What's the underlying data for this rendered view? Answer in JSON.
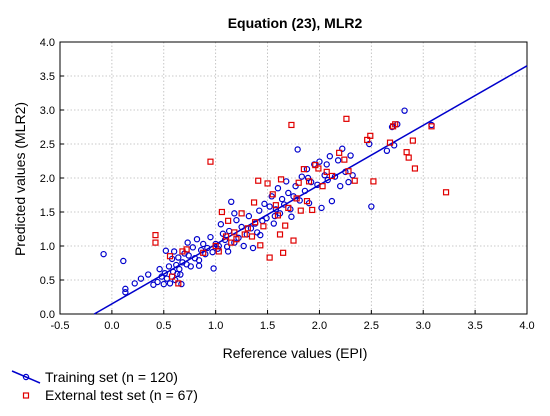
{
  "chart_data": {
    "type": "scatter",
    "title": "Equation (23), MLR2",
    "xlabel": "Reference values (EPI)",
    "ylabel": "Predicted values (MLR2)",
    "xlim": [
      -0.5,
      4.0
    ],
    "ylim": [
      0.0,
      4.0
    ],
    "x_ticks": [
      "-0.5",
      "0.0",
      "0.5",
      "1.0",
      "1.5",
      "2.0",
      "2.5",
      "3.0",
      "3.5",
      "4.0"
    ],
    "y_ticks": [
      "0.0",
      "0.5",
      "1.0",
      "1.5",
      "2.0",
      "2.5",
      "3.0",
      "3.5",
      "4.0"
    ],
    "grid": true,
    "legend_position": "bottom-left",
    "colors": {
      "training": "#0000cc",
      "test": "#e00000",
      "fit_line": "#0000cc"
    },
    "fit_line": {
      "x": [
        -0.17,
        4.0
      ],
      "y": [
        0.0,
        3.65
      ]
    },
    "series": [
      {
        "name": "Training set (n = 120)",
        "marker": "circle",
        "points": [
          [
            -0.08,
            0.88
          ],
          [
            0.11,
            0.78
          ],
          [
            0.13,
            0.37
          ],
          [
            0.13,
            0.32
          ],
          [
            0.22,
            0.45
          ],
          [
            0.28,
            0.52
          ],
          [
            0.35,
            0.58
          ],
          [
            0.4,
            0.43
          ],
          [
            0.44,
            0.47
          ],
          [
            0.46,
            0.66
          ],
          [
            0.48,
            0.55
          ],
          [
            0.5,
            0.44
          ],
          [
            0.51,
            0.6
          ],
          [
            0.53,
            0.52
          ],
          [
            0.55,
            0.7
          ],
          [
            0.56,
            0.45
          ],
          [
            0.58,
            0.81
          ],
          [
            0.59,
            0.62
          ],
          [
            0.6,
            0.92
          ],
          [
            0.61,
            0.5
          ],
          [
            0.62,
            0.72
          ],
          [
            0.63,
            0.59
          ],
          [
            0.64,
            0.83
          ],
          [
            0.65,
            0.66
          ],
          [
            0.66,
            0.58
          ],
          [
            0.68,
            0.76
          ],
          [
            0.7,
            0.89
          ],
          [
            0.72,
            0.73
          ],
          [
            0.74,
            0.86
          ],
          [
            0.76,
            0.7
          ],
          [
            0.78,
            0.98
          ],
          [
            0.8,
            0.82
          ],
          [
            0.82,
            1.1
          ],
          [
            0.84,
            0.79
          ],
          [
            0.86,
            0.94
          ],
          [
            0.88,
            1.03
          ],
          [
            0.9,
            0.88
          ],
          [
            0.92,
            0.97
          ],
          [
            0.95,
            1.13
          ],
          [
            0.97,
            0.91
          ],
          [
            1.0,
            1.03
          ],
          [
            1.02,
            0.96
          ],
          [
            1.05,
            1.32
          ],
          [
            1.07,
            1.18
          ],
          [
            1.09,
            1.09
          ],
          [
            1.11,
            0.99
          ],
          [
            1.13,
            1.22
          ],
          [
            1.15,
            1.65
          ],
          [
            1.18,
            1.05
          ],
          [
            1.2,
            1.38
          ],
          [
            1.22,
            1.12
          ],
          [
            1.25,
            1.28
          ],
          [
            1.27,
            1.0
          ],
          [
            1.3,
            1.17
          ],
          [
            1.32,
            1.44
          ],
          [
            1.34,
            1.26
          ],
          [
            1.36,
            0.97
          ],
          [
            1.38,
            1.33
          ],
          [
            1.4,
            1.2
          ],
          [
            1.42,
            1.52
          ],
          [
            1.45,
            1.37
          ],
          [
            1.47,
            1.62
          ],
          [
            1.49,
            1.41
          ],
          [
            1.52,
            1.58
          ],
          [
            1.54,
            1.73
          ],
          [
            1.56,
            1.33
          ],
          [
            1.58,
            1.54
          ],
          [
            1.6,
            1.85
          ],
          [
            1.62,
            1.48
          ],
          [
            1.64,
            1.69
          ],
          [
            1.66,
            1.61
          ],
          [
            1.68,
            1.95
          ],
          [
            1.7,
            1.78
          ],
          [
            1.72,
            1.54
          ],
          [
            1.75,
            1.73
          ],
          [
            1.77,
            1.88
          ],
          [
            1.79,
            2.42
          ],
          [
            1.81,
            1.67
          ],
          [
            1.83,
            2.02
          ],
          [
            1.86,
            1.81
          ],
          [
            1.88,
            2.13
          ],
          [
            1.9,
            1.63
          ],
          [
            1.92,
            1.94
          ],
          [
            1.95,
            2.2
          ],
          [
            1.98,
            1.9
          ],
          [
            2.0,
            2.24
          ],
          [
            2.02,
            1.56
          ],
          [
            2.05,
            2.04
          ],
          [
            2.08,
            1.97
          ],
          [
            2.1,
            2.32
          ],
          [
            2.12,
            1.66
          ],
          [
            2.15,
            2.02
          ],
          [
            2.18,
            2.26
          ],
          [
            2.2,
            1.88
          ],
          [
            2.22,
            2.43
          ],
          [
            2.25,
            2.09
          ],
          [
            2.28,
            1.94
          ],
          [
            2.3,
            2.33
          ],
          [
            2.32,
            2.04
          ],
          [
            2.48,
            2.5
          ],
          [
            2.5,
            1.58
          ],
          [
            2.65,
            2.4
          ],
          [
            2.7,
            2.75
          ],
          [
            2.72,
            2.48
          ],
          [
            2.75,
            2.79
          ],
          [
            2.82,
            2.99
          ],
          [
            3.08,
            2.78
          ],
          [
            0.98,
            0.67
          ],
          [
            1.03,
            1.0
          ],
          [
            1.12,
            0.92
          ],
          [
            1.43,
            1.16
          ],
          [
            1.57,
            1.44
          ],
          [
            1.73,
            1.43
          ],
          [
            1.89,
            2.0
          ],
          [
            2.07,
            2.2
          ],
          [
            0.67,
            0.44
          ],
          [
            0.52,
            0.93
          ],
          [
            0.73,
            1.05
          ],
          [
            0.84,
            0.71
          ],
          [
            1.18,
            1.48
          ]
        ]
      },
      {
        "name": "External test set (n = 67)",
        "marker": "square",
        "points": [
          [
            0.42,
            1.16
          ],
          [
            0.42,
            1.05
          ],
          [
            0.56,
            0.85
          ],
          [
            0.58,
            0.55
          ],
          [
            0.64,
            0.45
          ],
          [
            0.68,
            0.92
          ],
          [
            0.72,
            0.95
          ],
          [
            0.88,
            0.9
          ],
          [
            0.95,
            2.24
          ],
          [
            1.0,
            1.0
          ],
          [
            1.03,
            0.92
          ],
          [
            1.06,
            1.5
          ],
          [
            1.1,
            1.14
          ],
          [
            1.12,
            1.37
          ],
          [
            1.15,
            1.05
          ],
          [
            1.18,
            1.2
          ],
          [
            1.2,
            1.1
          ],
          [
            1.25,
            1.48
          ],
          [
            1.28,
            1.17
          ],
          [
            1.31,
            1.26
          ],
          [
            1.35,
            1.14
          ],
          [
            1.38,
            1.35
          ],
          [
            1.41,
            1.96
          ],
          [
            1.43,
            1.01
          ],
          [
            1.46,
            1.29
          ],
          [
            1.5,
            1.92
          ],
          [
            1.52,
            0.83
          ],
          [
            1.55,
            1.76
          ],
          [
            1.58,
            1.6
          ],
          [
            1.6,
            1.45
          ],
          [
            1.63,
            1.98
          ],
          [
            1.65,
            0.9
          ],
          [
            1.67,
            1.3
          ],
          [
            1.7,
            1.56
          ],
          [
            1.73,
            2.78
          ],
          [
            1.75,
            1.08
          ],
          [
            1.78,
            1.7
          ],
          [
            1.8,
            1.93
          ],
          [
            1.82,
            1.52
          ],
          [
            1.85,
            2.13
          ],
          [
            1.88,
            1.66
          ],
          [
            1.9,
            1.95
          ],
          [
            1.93,
            1.53
          ],
          [
            1.96,
            2.19
          ],
          [
            1.99,
            2.14
          ],
          [
            2.03,
            1.88
          ],
          [
            2.07,
            2.09
          ],
          [
            2.12,
            2.03
          ],
          [
            2.19,
            2.37
          ],
          [
            2.24,
            2.27
          ],
          [
            2.26,
            2.87
          ],
          [
            2.28,
            2.1
          ],
          [
            2.34,
            1.96
          ],
          [
            2.46,
            2.56
          ],
          [
            2.49,
            2.62
          ],
          [
            2.52,
            1.95
          ],
          [
            2.68,
            2.52
          ],
          [
            2.71,
            2.76
          ],
          [
            2.73,
            2.79
          ],
          [
            2.84,
            2.38
          ],
          [
            2.86,
            2.3
          ],
          [
            2.9,
            2.55
          ],
          [
            2.92,
            2.14
          ],
          [
            3.08,
            2.76
          ],
          [
            3.22,
            1.79
          ],
          [
            1.37,
            1.64
          ],
          [
            1.62,
            1.17
          ]
        ]
      }
    ]
  }
}
